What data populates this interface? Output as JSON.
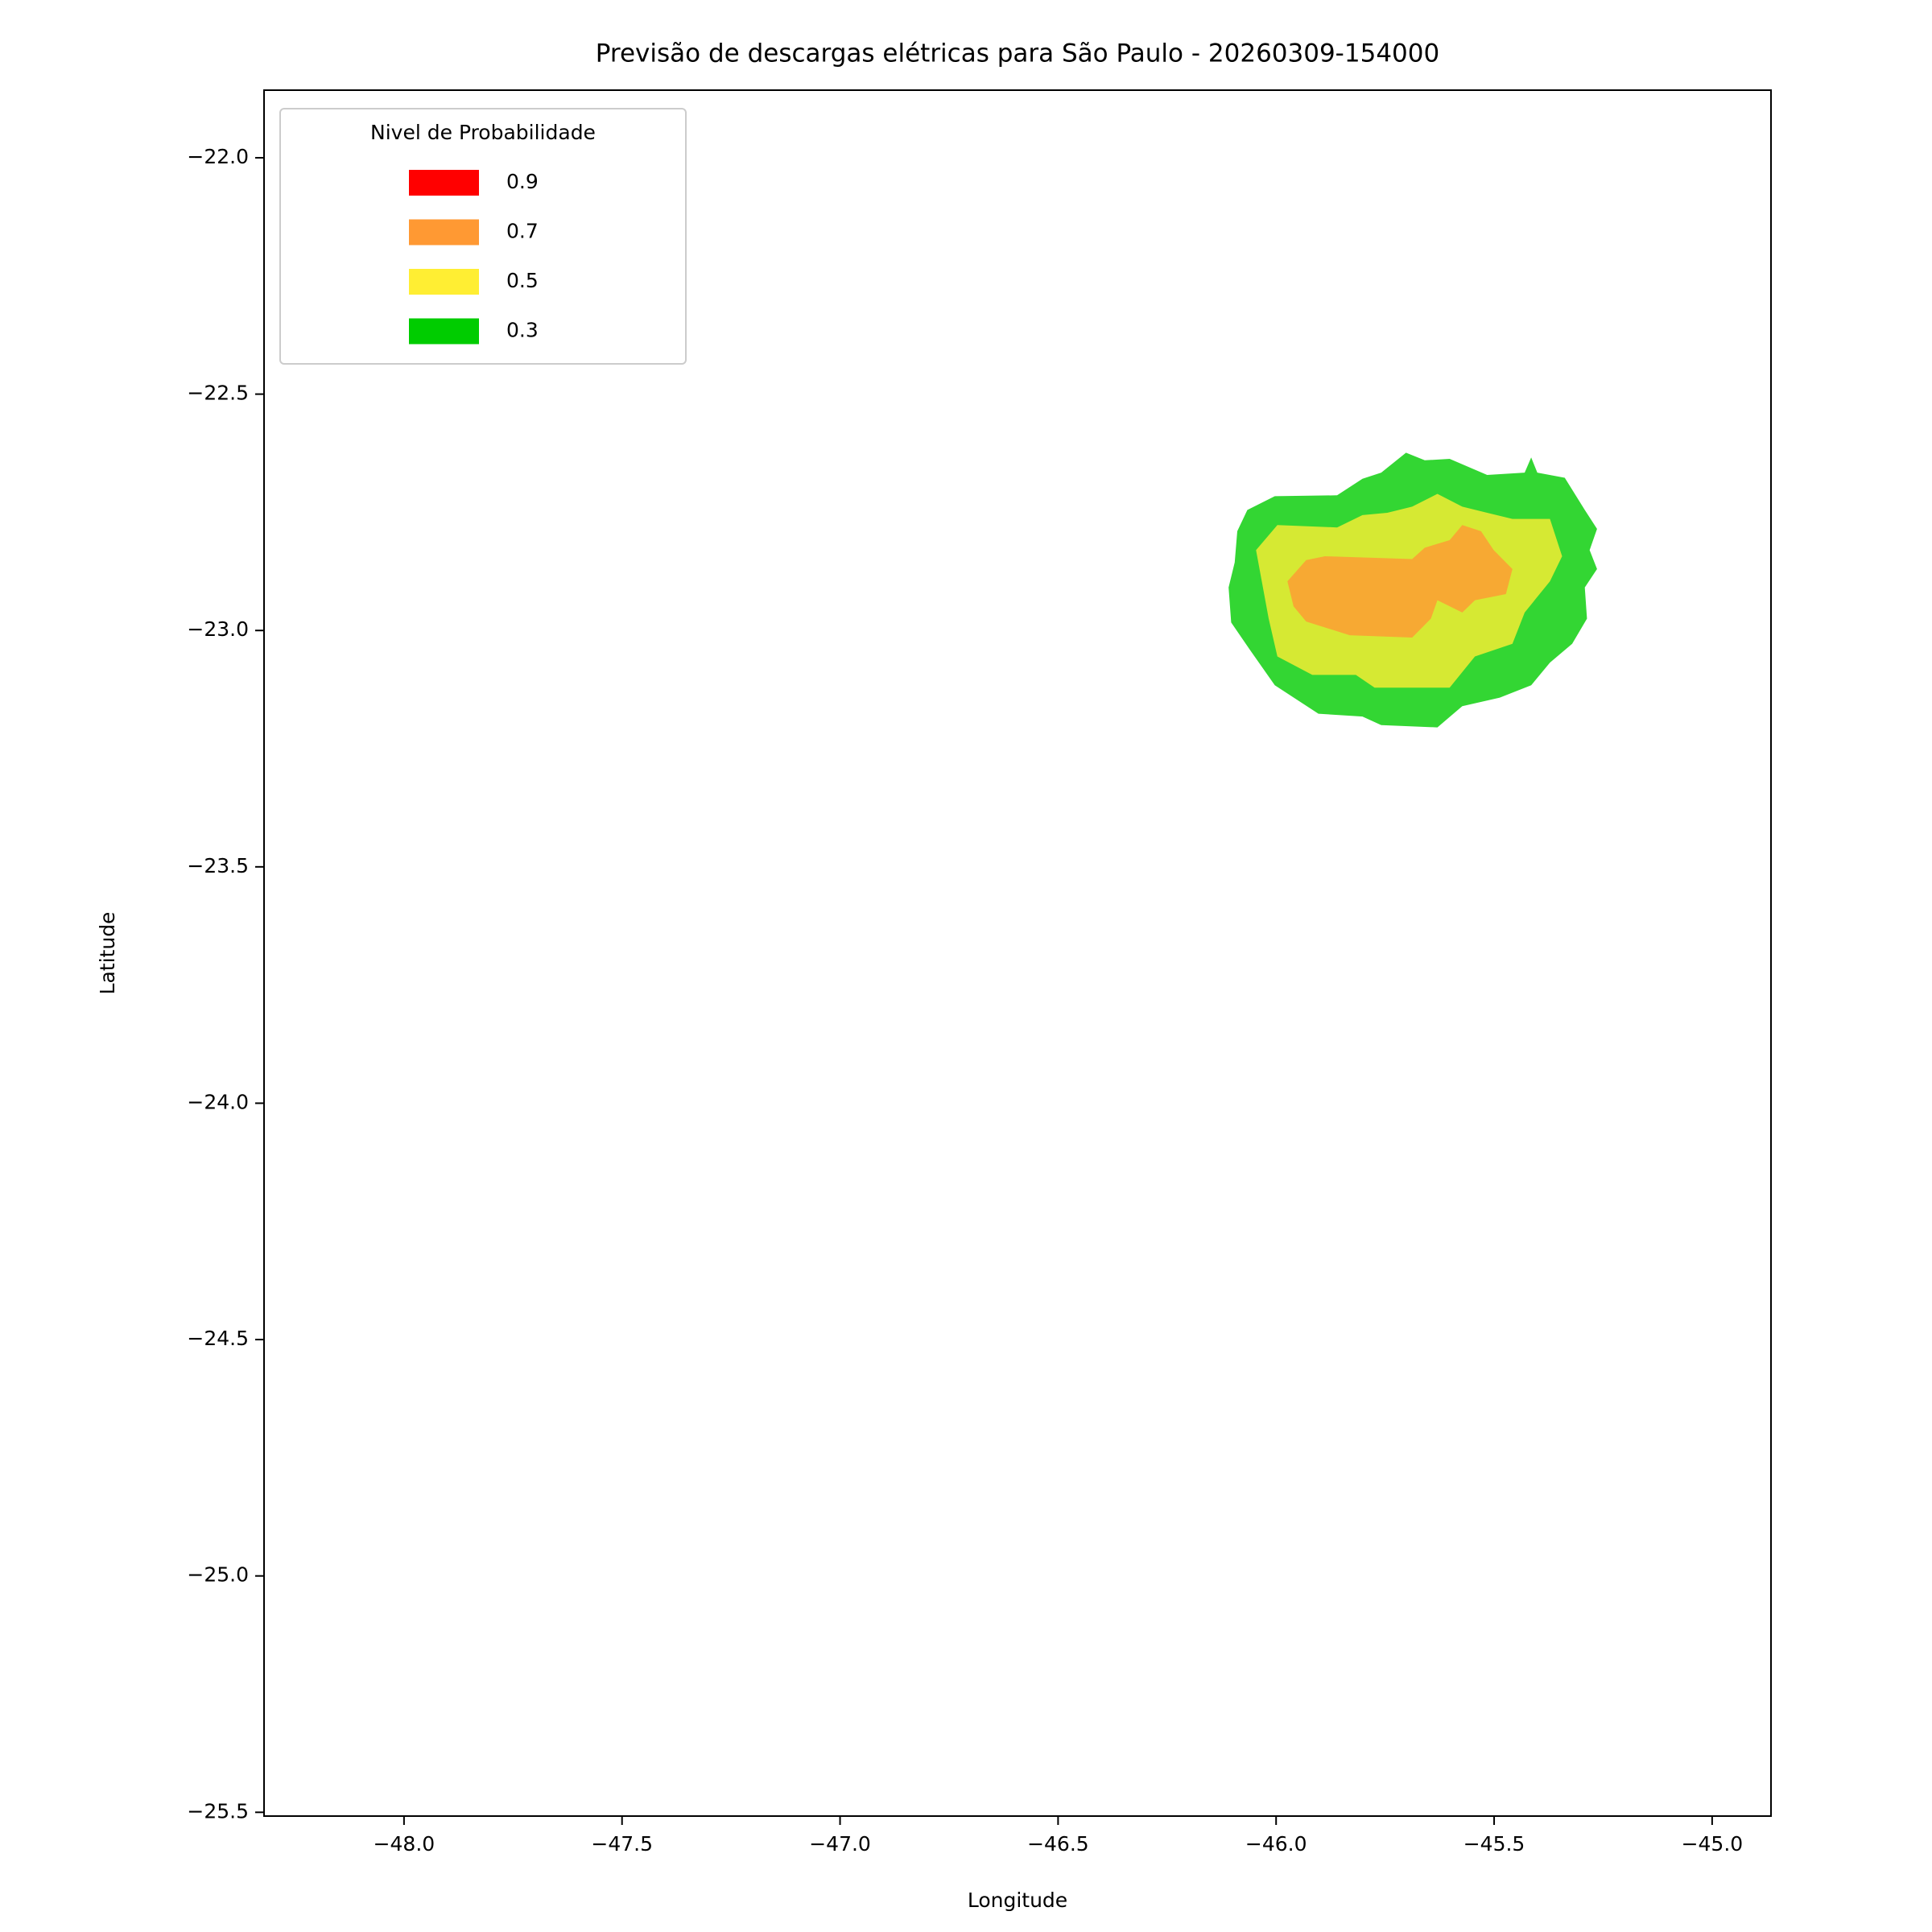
{
  "chart_data": {
    "type": "contourf",
    "title": "Previsão de descargas elétricas para São Paulo - 20260309-154000",
    "x_label": "Longitude",
    "y_label": "Latitude",
    "legend_title": "Nivel de Probabilidade",
    "legend_position": "upper left",
    "alpha": 0.8,
    "xlim": [
      -48.321,
      -44.865
    ],
    "ylim": [
      -25.508,
      -21.857
    ],
    "xticks": [
      {
        "value": -48,
        "label": "−48.0"
      },
      {
        "value": -47.5,
        "label": "−47.5"
      },
      {
        "value": -47,
        "label": "−47.0"
      },
      {
        "value": -46.5,
        "label": "−46.5"
      },
      {
        "value": -46,
        "label": "−46.0"
      },
      {
        "value": -45.5,
        "label": "−45.5"
      },
      {
        "value": -45,
        "label": "−45.0"
      }
    ],
    "yticks": [
      {
        "value": -22,
        "label": "−22.0"
      },
      {
        "value": -22.5,
        "label": "−22.5"
      },
      {
        "value": -23,
        "label": "−23.0"
      },
      {
        "value": -23.5,
        "label": "−23.5"
      },
      {
        "value": -24,
        "label": "−24.0"
      },
      {
        "value": -24.5,
        "label": "−24.5"
      },
      {
        "value": -25,
        "label": "−25.0"
      },
      {
        "value": -25.5,
        "label": "−25.5"
      }
    ],
    "series": [
      {
        "name": "0.9",
        "color": "#ff0000",
        "x": [],
        "y": []
      },
      {
        "name": "0.7",
        "color": "#ff9933",
        "x": [
          -45.974,
          -45.931,
          -45.888,
          -45.688,
          -45.659,
          -45.602,
          -45.573,
          -45.53,
          -45.501,
          -45.458,
          -45.473,
          -45.544,
          -45.573,
          -45.63,
          -45.645,
          -45.688,
          -45.831,
          -45.931,
          -45.96
        ],
        "y": [
          -22.896,
          -22.851,
          -22.843,
          -22.849,
          -22.825,
          -22.809,
          -22.777,
          -22.79,
          -22.83,
          -22.87,
          -22.923,
          -22.936,
          -22.962,
          -22.936,
          -22.975,
          -23.015,
          -23.01,
          -22.981,
          -22.949
        ]
      },
      {
        "name": "0.5",
        "color": "#ffee33",
        "x": [
          -46.046,
          -45.997,
          -45.86,
          -45.802,
          -45.745,
          -45.688,
          -45.63,
          -45.573,
          -45.516,
          -45.458,
          -45.372,
          -45.344,
          -45.372,
          -45.43,
          -45.458,
          -45.544,
          -45.602,
          -45.774,
          -45.817,
          -45.917,
          -45.997,
          -46.017
        ],
        "y": [
          -22.83,
          -22.777,
          -22.782,
          -22.756,
          -22.751,
          -22.738,
          -22.711,
          -22.738,
          -22.751,
          -22.764,
          -22.764,
          -22.843,
          -22.896,
          -22.962,
          -23.028,
          -23.055,
          -23.121,
          -23.121,
          -23.094,
          -23.094,
          -23.055,
          -22.975
        ]
      },
      {
        "name": "0.3",
        "color": "#00cc00",
        "x": [
          -46.066,
          -46.003,
          -45.86,
          -45.802,
          -45.759,
          -45.702,
          -45.659,
          -45.602,
          -45.516,
          -45.43,
          -45.415,
          -45.401,
          -45.338,
          -45.292,
          -45.264,
          -45.281,
          -45.264,
          -45.292,
          -45.287,
          -45.321,
          -45.372,
          -45.415,
          -45.487,
          -45.573,
          -45.63,
          -45.759,
          -45.802,
          -45.903,
          -46.003,
          -46.06,
          -46.103,
          -46.109,
          -46.095,
          -46.089
        ],
        "y": [
          -22.745,
          -22.716,
          -22.714,
          -22.679,
          -22.666,
          -22.624,
          -22.64,
          -22.637,
          -22.671,
          -22.666,
          -22.634,
          -22.666,
          -22.677,
          -22.745,
          -22.785,
          -22.83,
          -22.87,
          -22.909,
          -22.975,
          -23.028,
          -23.068,
          -23.116,
          -23.142,
          -23.16,
          -23.205,
          -23.2,
          -23.182,
          -23.176,
          -23.116,
          -23.041,
          -22.983,
          -22.909,
          -22.856,
          -22.79
        ]
      }
    ]
  }
}
